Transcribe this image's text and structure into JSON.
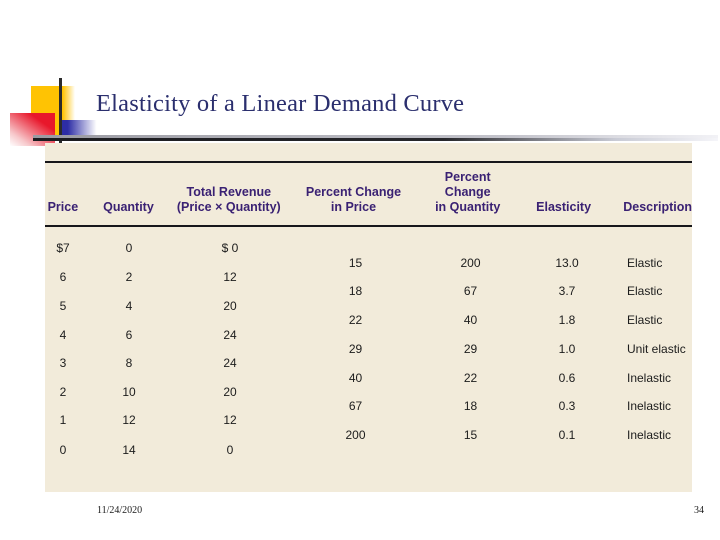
{
  "slide": {
    "title": "Elasticity of a Linear Demand Curve",
    "footer": {
      "date": "11/24/2020",
      "page": "34"
    }
  },
  "colors": {
    "accent_gold": "#FFC303",
    "accent_red": "#E8172B",
    "accent_blue": "#2D2DA5",
    "title_navy": "#2B2F6E",
    "panel_beige": "#F2EBDA",
    "header_purple": "#3A2173",
    "rule_black": "#17171B"
  },
  "table": {
    "headers": [
      {
        "line1": "",
        "line2": "Price"
      },
      {
        "line1": "",
        "line2": "Quantity"
      },
      {
        "line1": "Total Revenue",
        "line2": "(Price × Quantity)"
      },
      {
        "line1": "Percent Change",
        "line2": "in Price"
      },
      {
        "line1": "Percent Change",
        "line2": "in Quantity"
      },
      {
        "line1": "",
        "line2": "Elasticity"
      },
      {
        "line1": "",
        "line2": "Description"
      }
    ],
    "main_rows": [
      {
        "price": "$7",
        "quantity": "0",
        "revenue": "$ 0"
      },
      {
        "price": "6",
        "quantity": "2",
        "revenue": "12"
      },
      {
        "price": "5",
        "quantity": "4",
        "revenue": "20"
      },
      {
        "price": "4",
        "quantity": "6",
        "revenue": "24"
      },
      {
        "price": "3",
        "quantity": "8",
        "revenue": "24"
      },
      {
        "price": "2",
        "quantity": "10",
        "revenue": "20"
      },
      {
        "price": "1",
        "quantity": "12",
        "revenue": "12"
      },
      {
        "price": "0",
        "quantity": "14",
        "revenue": "0"
      }
    ],
    "between_rows": [
      {
        "pct_price": "15",
        "pct_quantity": "200",
        "elasticity": "13.0",
        "description": "Elastic"
      },
      {
        "pct_price": "18",
        "pct_quantity": "67",
        "elasticity": "3.7",
        "description": "Elastic"
      },
      {
        "pct_price": "22",
        "pct_quantity": "40",
        "elasticity": "1.8",
        "description": "Elastic"
      },
      {
        "pct_price": "29",
        "pct_quantity": "29",
        "elasticity": "1.0",
        "description": "Unit elastic"
      },
      {
        "pct_price": "40",
        "pct_quantity": "22",
        "elasticity": "0.6",
        "description": "Inelastic"
      },
      {
        "pct_price": "67",
        "pct_quantity": "18",
        "elasticity": "0.3",
        "description": "Inelastic"
      },
      {
        "pct_price": "200",
        "pct_quantity": "15",
        "elasticity": "0.1",
        "description": "Inelastic"
      }
    ]
  }
}
